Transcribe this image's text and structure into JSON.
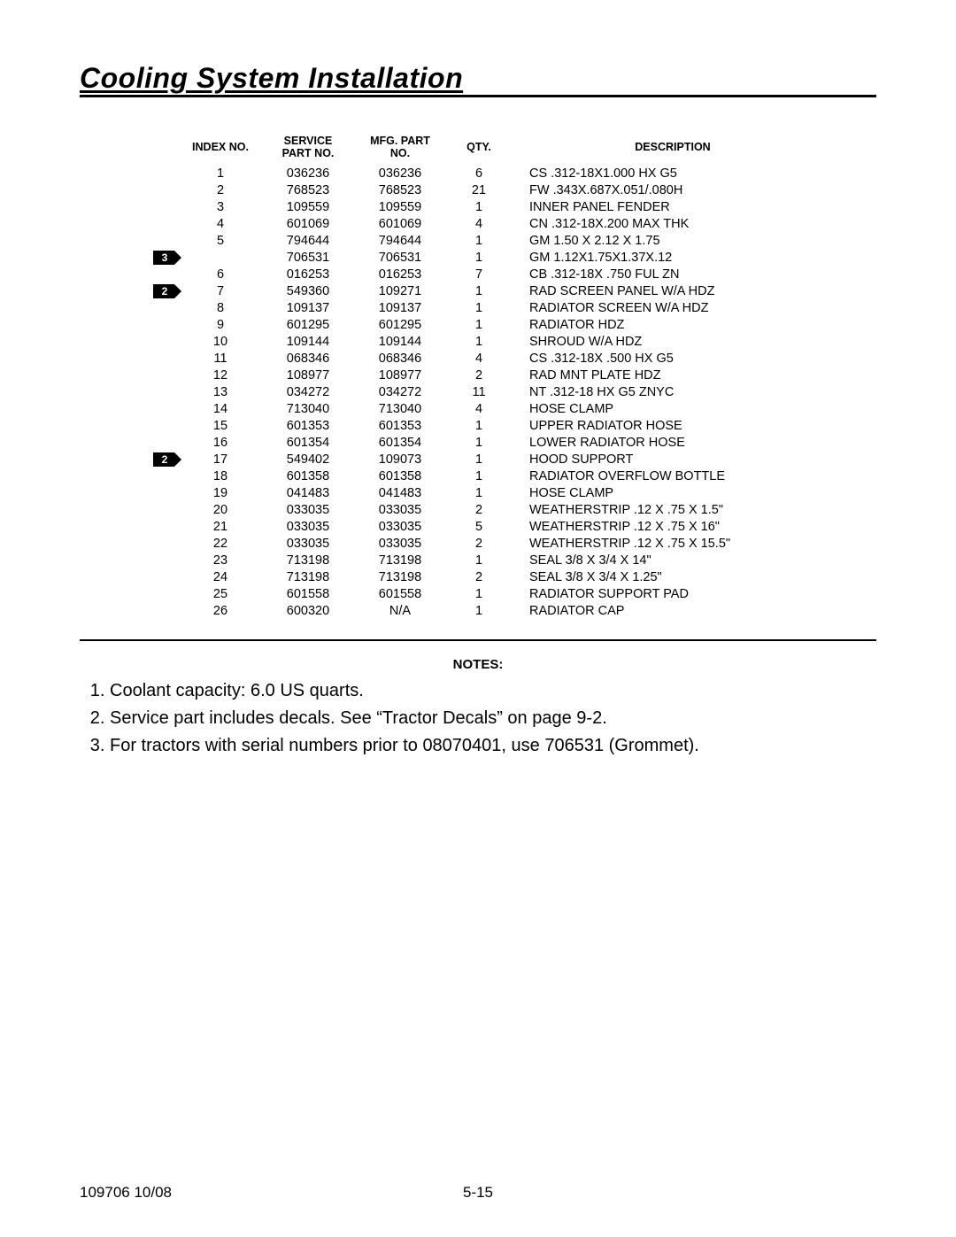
{
  "page": {
    "title": "Cooling System Installation",
    "notes_header": "NOTES:",
    "footer_left": "109706 10/08",
    "footer_center": "5-15"
  },
  "table": {
    "headers": {
      "index": "INDEX NO.",
      "service_l1": "SERVICE",
      "service_l2": "PART NO.",
      "mfg_l1": "MFG. PART",
      "mfg_l2": "NO.",
      "qty": "QTY.",
      "desc": "DESCRIPTION"
    },
    "rows": [
      {
        "tag": "",
        "index": "1",
        "svc": "036236",
        "mfg": "036236",
        "qty": "6",
        "desc": "CS .312-18X1.000 HX G5"
      },
      {
        "tag": "",
        "index": "2",
        "svc": "768523",
        "mfg": "768523",
        "qty": "21",
        "desc": "FW .343X.687X.051/.080H"
      },
      {
        "tag": "",
        "index": "3",
        "svc": "109559",
        "mfg": "109559",
        "qty": "1",
        "desc": "INNER PANEL FENDER"
      },
      {
        "tag": "",
        "index": "4",
        "svc": "601069",
        "mfg": "601069",
        "qty": "4",
        "desc": "CN .312-18X.200 MAX THK"
      },
      {
        "tag": "",
        "index": "5",
        "svc": "794644",
        "mfg": "794644",
        "qty": "1",
        "desc": "GM 1.50 X 2.12 X 1.75"
      },
      {
        "tag": "3",
        "index": "",
        "svc": "706531",
        "mfg": "706531",
        "qty": "1",
        "desc": "GM 1.12X1.75X1.37X.12"
      },
      {
        "tag": "",
        "index": "6",
        "svc": "016253",
        "mfg": "016253",
        "qty": "7",
        "desc": "CB .312-18X .750 FUL ZN"
      },
      {
        "tag": "2",
        "index": "7",
        "svc": "549360",
        "mfg": "109271",
        "qty": "1",
        "desc": "RAD SCREEN PANEL W/A HDZ"
      },
      {
        "tag": "",
        "index": "8",
        "svc": "109137",
        "mfg": "109137",
        "qty": "1",
        "desc": "RADIATOR SCREEN W/A HDZ"
      },
      {
        "tag": "",
        "index": "9",
        "svc": "601295",
        "mfg": "601295",
        "qty": "1",
        "desc": "RADIATOR HDZ"
      },
      {
        "tag": "",
        "index": "10",
        "svc": "109144",
        "mfg": "109144",
        "qty": "1",
        "desc": "SHROUD W/A HDZ"
      },
      {
        "tag": "",
        "index": "11",
        "svc": "068346",
        "mfg": "068346",
        "qty": "4",
        "desc": "CS .312-18X .500 HX G5"
      },
      {
        "tag": "",
        "index": "12",
        "svc": "108977",
        "mfg": "108977",
        "qty": "2",
        "desc": "RAD MNT PLATE HDZ"
      },
      {
        "tag": "",
        "index": "13",
        "svc": "034272",
        "mfg": "034272",
        "qty": "11",
        "desc": "NT .312-18 HX G5 ZNYC"
      },
      {
        "tag": "",
        "index": "14",
        "svc": "713040",
        "mfg": "713040",
        "qty": "4",
        "desc": "HOSE CLAMP"
      },
      {
        "tag": "",
        "index": "15",
        "svc": "601353",
        "mfg": "601353",
        "qty": "1",
        "desc": "UPPER RADIATOR HOSE"
      },
      {
        "tag": "",
        "index": "16",
        "svc": "601354",
        "mfg": "601354",
        "qty": "1",
        "desc": "LOWER RADIATOR HOSE"
      },
      {
        "tag": "2",
        "index": "17",
        "svc": "549402",
        "mfg": "109073",
        "qty": "1",
        "desc": "HOOD SUPPORT"
      },
      {
        "tag": "",
        "index": "18",
        "svc": "601358",
        "mfg": "601358",
        "qty": "1",
        "desc": "RADIATOR OVERFLOW BOTTLE"
      },
      {
        "tag": "",
        "index": "19",
        "svc": "041483",
        "mfg": "041483",
        "qty": "1",
        "desc": "HOSE CLAMP"
      },
      {
        "tag": "",
        "index": "20",
        "svc": "033035",
        "mfg": "033035",
        "qty": "2",
        "desc": "WEATHERSTRIP .12 X .75 X 1.5\""
      },
      {
        "tag": "",
        "index": "21",
        "svc": "033035",
        "mfg": "033035",
        "qty": "5",
        "desc": "WEATHERSTRIP .12 X .75 X 16\""
      },
      {
        "tag": "",
        "index": "22",
        "svc": "033035",
        "mfg": "033035",
        "qty": "2",
        "desc": "WEATHERSTRIP .12 X .75 X 15.5\""
      },
      {
        "tag": "",
        "index": "23",
        "svc": "713198",
        "mfg": "713198",
        "qty": "1",
        "desc": "SEAL 3/8 X 3/4 X 14\""
      },
      {
        "tag": "",
        "index": "24",
        "svc": "713198",
        "mfg": "713198",
        "qty": "2",
        "desc": "SEAL 3/8 X 3/4 X 1.25\""
      },
      {
        "tag": "",
        "index": "25",
        "svc": "601558",
        "mfg": "601558",
        "qty": "1",
        "desc": "RADIATOR SUPPORT PAD"
      },
      {
        "tag": "",
        "index": "26",
        "svc": "600320",
        "mfg": "N/A",
        "qty": "1",
        "desc": "RADIATOR CAP"
      }
    ]
  },
  "notes": [
    "Coolant capacity: 6.0 US quarts.",
    "Service part includes decals. See “Tractor Decals” on page 9-2.",
    "For tractors with serial numbers prior to 08070401, use 706531 (Grommet)."
  ]
}
